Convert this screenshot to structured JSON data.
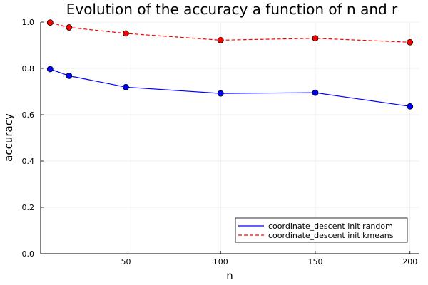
{
  "chart_data": {
    "type": "line",
    "title": "Evolution of the accuracy a function of n and r",
    "xlabel": "n",
    "ylabel": "accuracy",
    "xlim": [
      5,
      205
    ],
    "ylim": [
      0,
      1.0
    ],
    "x_ticks": [
      50,
      100,
      150,
      200
    ],
    "x_tick_labels": [
      "50",
      "100",
      "150",
      "200"
    ],
    "y_ticks": [
      0,
      0.2,
      0.4,
      0.6,
      0.8,
      1.0
    ],
    "y_tick_labels": [
      "0.0",
      "0.2",
      "0.4",
      "0.6",
      "0.8",
      "1.0"
    ],
    "grid": true,
    "legend_position": "bottom-right",
    "x": [
      10,
      20,
      50,
      100,
      150,
      200
    ],
    "series": [
      {
        "name": "coordinate_descent init random",
        "values": [
          0.797,
          0.768,
          0.719,
          0.692,
          0.695,
          0.636
        ],
        "color": "#0000ff",
        "line_style": "solid"
      },
      {
        "name": "coordinate_descent init kmeans",
        "values": [
          0.998,
          0.977,
          0.951,
          0.922,
          0.93,
          0.913
        ],
        "color": "#ff0000",
        "line_style": "dashed"
      }
    ]
  }
}
